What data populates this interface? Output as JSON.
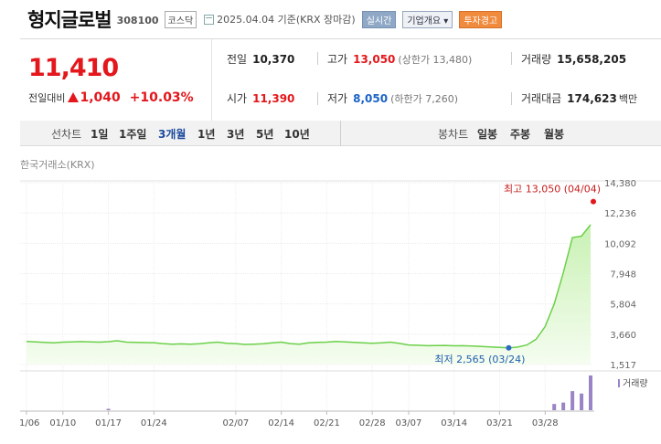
{
  "header": {
    "name": "형지글로벌",
    "code": "308100",
    "market": "코스닥",
    "date": "2025.04.04 기준(KRX 장마감)",
    "realtime_btn": "실시간",
    "company_btn": "기업개요 ▾",
    "warning_btn": "투자경고"
  },
  "quote": {
    "price": "11,410",
    "change_label": "전일대비",
    "change": "1,040",
    "change_pct": "+10.03%",
    "prev_label": "전일",
    "prev": "10,370",
    "open_label": "시가",
    "open": "11,390",
    "high_label": "고가",
    "high": "13,050",
    "upper_limit": "(상한가 13,480)",
    "low_label": "저가",
    "low": "8,050",
    "lower_limit": "(하한가 7,260)",
    "volume_label": "거래량",
    "volume": "15,658,205",
    "amount_label": "거래대금",
    "amount": "174,623",
    "amount_unit": "백만"
  },
  "toolbar": {
    "line_label": "선차트",
    "periods": [
      "1일",
      "1주일",
      "3개월",
      "1년",
      "3년",
      "5년",
      "10년"
    ],
    "selected_period": "3개월",
    "candle_label": "봉차트",
    "candles": [
      "일봉",
      "주봉",
      "월봉"
    ]
  },
  "source": "한국거래소(KRX)",
  "colors": {
    "up": "#e3171c",
    "down": "#1a62c7",
    "line": "#6cd04a",
    "volume": "#9b84c6"
  },
  "chart_data": {
    "type": "area",
    "y_ticks": [
      "14,380",
      "12,236",
      "10,092",
      "7,948",
      "5,804",
      "3,660",
      "1,517"
    ],
    "y_tick_values": [
      14380,
      12236,
      10092,
      7948,
      5804,
      3660,
      1517
    ],
    "ylim": [
      1517,
      14380
    ],
    "x_ticks": [
      "01/06",
      "01/10",
      "01/17",
      "01/24",
      "02/07",
      "02/14",
      "02/21",
      "02/28",
      "03/07",
      "03/14",
      "03/21",
      "03/28"
    ],
    "x_tick_index": [
      0,
      4,
      9,
      14,
      23,
      28,
      33,
      38,
      42,
      47,
      52,
      57
    ],
    "prices": [
      3150,
      3120,
      3080,
      3050,
      3100,
      3120,
      3140,
      3120,
      3100,
      3130,
      3200,
      3100,
      3080,
      3070,
      3060,
      3000,
      2950,
      2980,
      2960,
      2990,
      3050,
      3100,
      3020,
      3000,
      2940,
      2960,
      2990,
      3050,
      3100,
      3000,
      2950,
      3050,
      3080,
      3100,
      3150,
      3120,
      3080,
      3050,
      3020,
      3050,
      3100,
      3010,
      2900,
      2880,
      2850,
      2860,
      2870,
      2840,
      2850,
      2830,
      2800,
      2760,
      2730,
      2700,
      2750,
      2900,
      3300,
      4200,
      5800,
      8000,
      10500,
      10600,
      11410
    ],
    "high_annotation": "최고 13,050 (04/04)",
    "high_value": 13050,
    "low_annotation": "최저 2,565 (03/24)",
    "low_value": 2565,
    "low_index": 53,
    "volume_label": "거래량",
    "volumes": [
      0,
      0,
      0,
      0,
      0,
      0,
      0,
      0,
      0,
      0.04,
      0,
      0,
      0,
      0,
      0,
      0,
      0,
      0,
      0,
      0,
      0,
      0,
      0,
      0,
      0,
      0,
      0,
      0,
      0,
      0,
      0,
      0,
      0,
      0,
      0,
      0,
      0,
      0,
      0,
      0,
      0,
      0,
      0,
      0,
      0,
      0,
      0,
      0,
      0,
      0,
      0,
      0,
      0,
      0,
      0,
      0,
      0,
      0,
      0.18,
      0.22,
      0.55,
      0.48,
      1.0
    ],
    "grid": true
  }
}
